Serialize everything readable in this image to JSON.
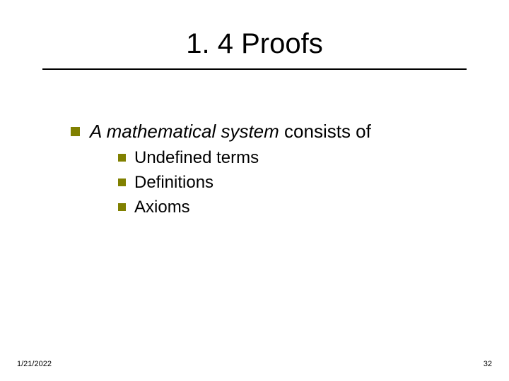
{
  "slide": {
    "title": "1. 4   Proofs",
    "intro_italic": "A mathematical system",
    "intro_rest": " consists of",
    "items": [
      "Undefined terms",
      "Definitions",
      "Axioms"
    ],
    "bullet_color": "#808000",
    "title_fontsize": 40,
    "body_fontsize": 26,
    "sub_fontsize": 24
  },
  "footer": {
    "date": "1/21/2022",
    "slide_number": "32"
  }
}
